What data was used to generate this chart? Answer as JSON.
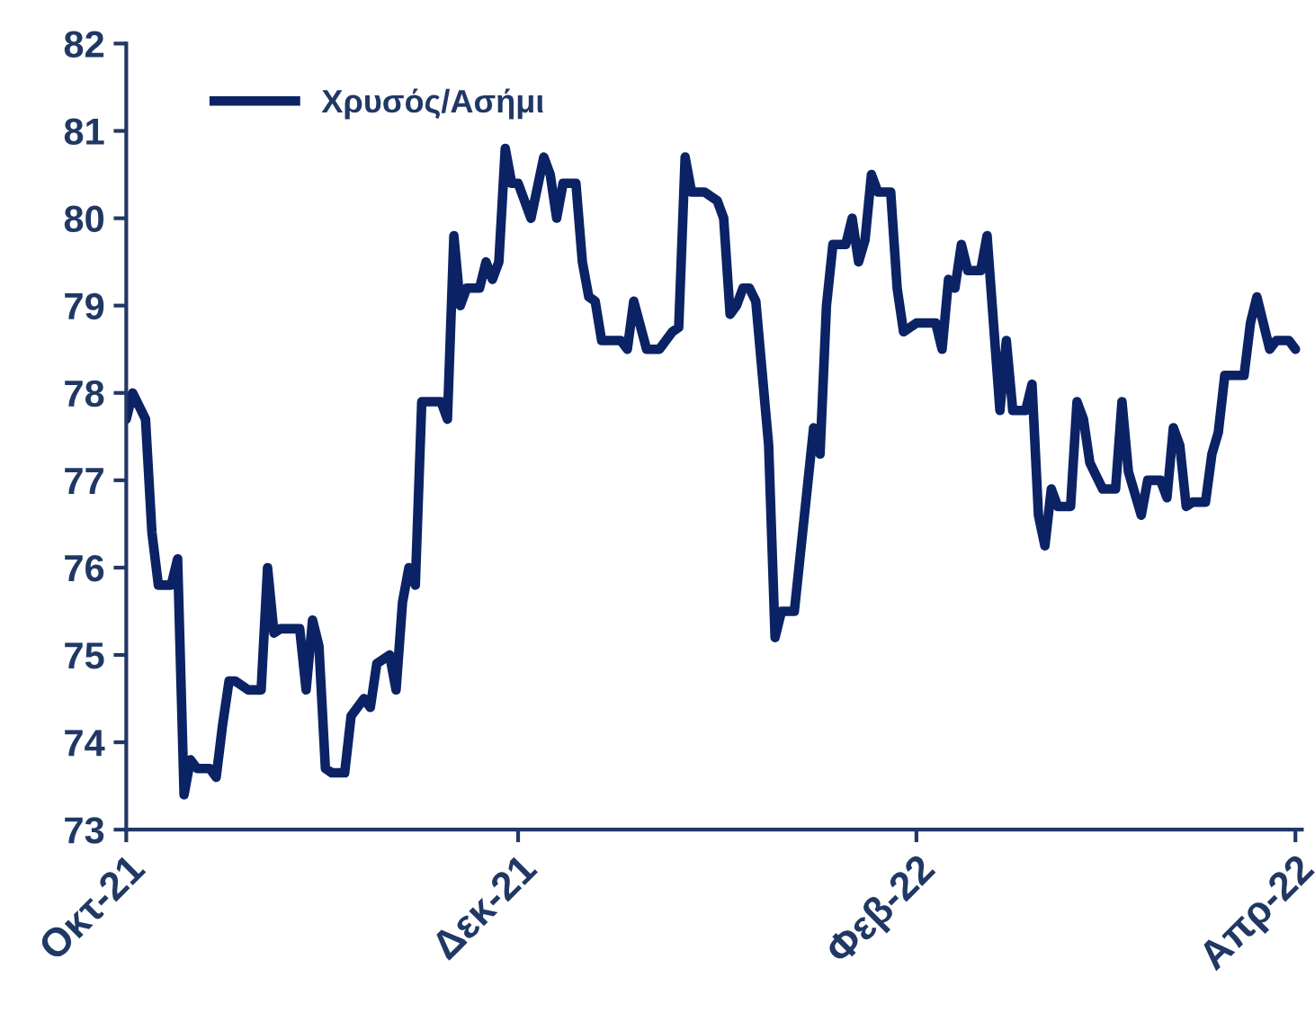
{
  "chart_data": {
    "type": "line",
    "x": [
      "2021-10-01",
      "2021-10-02",
      "2021-10-04",
      "2021-10-05",
      "2021-10-06",
      "2021-10-08",
      "2021-10-09",
      "2021-10-10",
      "2021-10-11",
      "2021-10-12",
      "2021-10-14",
      "2021-10-15",
      "2021-10-16",
      "2021-10-17",
      "2021-10-18",
      "2021-10-20",
      "2021-10-22",
      "2021-10-23",
      "2021-10-24",
      "2021-10-25",
      "2021-10-28",
      "2021-10-29",
      "2021-10-30",
      "2021-10-31",
      "2021-11-01",
      "2021-11-02",
      "2021-11-04",
      "2021-11-05",
      "2021-11-07",
      "2021-11-08",
      "2021-11-09",
      "2021-11-11",
      "2021-11-12",
      "2021-11-13",
      "2021-11-14",
      "2021-11-15",
      "2021-11-16",
      "2021-11-19",
      "2021-11-20",
      "2021-11-21",
      "2021-11-22",
      "2021-11-23",
      "2021-11-25",
      "2021-11-26",
      "2021-11-27",
      "2021-11-28",
      "2021-11-29",
      "2021-11-30",
      "2021-12-01",
      "2021-12-03",
      "2021-12-05",
      "2021-12-06",
      "2021-12-07",
      "2021-12-08",
      "2021-12-10",
      "2021-12-11",
      "2021-12-12",
      "2021-12-13",
      "2021-12-14",
      "2021-12-17",
      "2021-12-18",
      "2021-12-19",
      "2021-12-21",
      "2021-12-23",
      "2021-12-25",
      "2021-12-26",
      "2021-12-27",
      "2021-12-28",
      "2021-12-30",
      "2022-01-01",
      "2022-01-02",
      "2022-01-03",
      "2022-01-04",
      "2022-01-05",
      "2022-01-06",
      "2022-01-07",
      "2022-01-09",
      "2022-01-10",
      "2022-01-11",
      "2022-01-13",
      "2022-01-15",
      "2022-01-16",
      "2022-01-17",
      "2022-01-18",
      "2022-01-19",
      "2022-01-21",
      "2022-01-22",
      "2022-01-23",
      "2022-01-24",
      "2022-01-25",
      "2022-01-26",
      "2022-01-28",
      "2022-01-29",
      "2022-01-30",
      "2022-02-01",
      "2022-02-03",
      "2022-02-04",
      "2022-02-05",
      "2022-02-06",
      "2022-02-07",
      "2022-02-08",
      "2022-02-09",
      "2022-02-11",
      "2022-02-12",
      "2022-02-14",
      "2022-02-15",
      "2022-02-16",
      "2022-02-18",
      "2022-02-19",
      "2022-02-20",
      "2022-02-21",
      "2022-02-22",
      "2022-02-23",
      "2022-02-25",
      "2022-02-26",
      "2022-02-27",
      "2022-02-28",
      "2022-03-02",
      "2022-03-04",
      "2022-03-05",
      "2022-03-06",
      "2022-03-08",
      "2022-03-09",
      "2022-03-11",
      "2022-03-12",
      "2022-03-13",
      "2022-03-14",
      "2022-03-15",
      "2022-03-16",
      "2022-03-18",
      "2022-03-19",
      "2022-03-20",
      "2022-03-21",
      "2022-03-22",
      "2022-03-24",
      "2022-03-25",
      "2022-03-26",
      "2022-03-28",
      "2022-03-29",
      "2022-03-31",
      "2022-04-01"
    ],
    "series": [
      {
        "name": "Χρυσός/Ασήμι",
        "color": "#0b2265",
        "values": [
          77.7,
          78.0,
          77.7,
          76.4,
          75.8,
          75.8,
          76.1,
          73.4,
          73.8,
          73.7,
          73.7,
          73.6,
          74.2,
          74.7,
          74.7,
          74.6,
          74.6,
          76.0,
          75.25,
          75.3,
          75.3,
          74.6,
          75.4,
          75.1,
          73.7,
          73.65,
          73.65,
          74.3,
          74.5,
          74.4,
          74.9,
          75.0,
          74.6,
          75.6,
          76.0,
          75.8,
          77.9,
          77.9,
          77.7,
          79.8,
          79.0,
          79.2,
          79.2,
          79.5,
          79.3,
          79.5,
          80.8,
          80.4,
          80.4,
          80.0,
          80.7,
          80.5,
          80.0,
          80.4,
          80.4,
          79.5,
          79.1,
          79.05,
          78.6,
          78.6,
          78.5,
          79.05,
          78.5,
          78.5,
          78.7,
          78.75,
          80.7,
          80.3,
          80.3,
          80.2,
          80.0,
          78.9,
          79.0,
          79.2,
          79.2,
          79.05,
          77.4,
          75.2,
          75.5,
          75.5,
          76.9,
          77.6,
          77.3,
          79.0,
          79.7,
          79.7,
          80.0,
          79.5,
          79.75,
          80.5,
          80.3,
          80.3,
          79.2,
          78.7,
          78.8,
          78.8,
          78.8,
          78.5,
          79.3,
          79.2,
          79.7,
          79.4,
          79.4,
          79.8,
          77.8,
          78.6,
          77.8,
          77.8,
          78.1,
          76.6,
          76.25,
          76.9,
          76.7,
          76.7,
          77.9,
          77.7,
          77.2,
          76.9,
          76.9,
          77.9,
          77.1,
          76.6,
          77.0,
          77.0,
          76.8,
          77.6,
          77.4,
          76.7,
          76.75,
          76.75,
          77.3,
          77.55,
          78.2,
          78.2,
          78.2,
          78.8,
          79.1,
          78.5,
          78.6,
          78.6,
          78.5
        ]
      }
    ],
    "xlim": [
      "2021-10-01",
      "2022-04-02"
    ],
    "xticks": [
      {
        "value": "2021-10-01",
        "label": "Οκτ-21"
      },
      {
        "value": "2021-12-01",
        "label": "Δεκ-21"
      },
      {
        "value": "2022-02-01",
        "label": "Φεβ-22"
      },
      {
        "value": "2022-04-01",
        "label": "Απρ-22"
      }
    ],
    "ylim": [
      73,
      82
    ],
    "yticks": [
      73,
      74,
      75,
      76,
      77,
      78,
      79,
      80,
      81,
      82
    ],
    "grid": false,
    "legend": "top left",
    "marker": "none",
    "line_style": "solid"
  }
}
